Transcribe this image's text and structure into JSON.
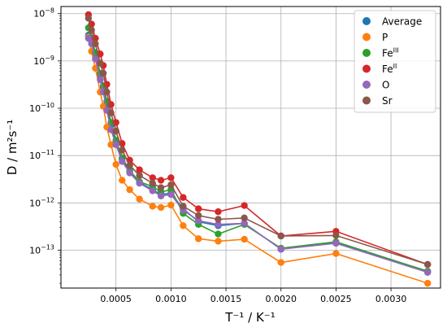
{
  "chart_data": {
    "type": "line",
    "xlabel": "T⁻¹ / K⁻¹",
    "ylabel": "D / m²s⁻¹",
    "xlim": [
      0.0,
      0.00345
    ],
    "ylim_log10": [
      -13.8,
      -7.85
    ],
    "yscale": "log",
    "grid": true,
    "legend_position": "top-right",
    "x_ticks": [
      {
        "value": 0.0005,
        "label": "0.0005"
      },
      {
        "value": 0.001,
        "label": "0.0010"
      },
      {
        "value": 0.0015,
        "label": "0.0015"
      },
      {
        "value": 0.002,
        "label": "0.0020"
      },
      {
        "value": 0.0025,
        "label": "0.0025"
      },
      {
        "value": 0.003,
        "label": "0.0030"
      }
    ],
    "y_ticks": [
      {
        "exp": -8,
        "base": "10",
        "sup": "−8"
      },
      {
        "exp": -9,
        "base": "10",
        "sup": "−9"
      },
      {
        "exp": -10,
        "base": "10",
        "sup": "−10"
      },
      {
        "exp": -11,
        "base": "10",
        "sup": "−11"
      },
      {
        "exp": -12,
        "base": "10",
        "sup": "−12"
      },
      {
        "exp": -13,
        "base": "10",
        "sup": "−13"
      }
    ],
    "x": [
      0.00025,
      0.000278,
      0.000313,
      0.000357,
      0.000385,
      0.000417,
      0.000455,
      0.0005,
      0.000556,
      0.000625,
      0.000714,
      0.000833,
      0.000909,
      0.001,
      0.001111,
      0.00125,
      0.001429,
      0.001667,
      0.002,
      0.0025,
      0.003333
    ],
    "series": [
      {
        "name": "Average",
        "sup": "",
        "color": "#1f77b4",
        "values": [
          3.5e-09,
          2.6e-09,
          1.3e-09,
          5e-10,
          2.7e-10,
          1.1e-10,
          4.4e-11,
          1.9e-11,
          8.5e-12,
          4.5e-12,
          2.7e-12,
          1.9e-12,
          1.5e-12,
          1.6e-12,
          7.5e-13,
          4e-13,
          3.3e-13,
          3.7e-13,
          1.05e-13,
          1.45e-13,
          3.5e-14
        ]
      },
      {
        "name": "P",
        "sup": "",
        "color": "#ff7f0e",
        "values": [
          3.2e-09,
          1.6e-09,
          7e-10,
          2.2e-10,
          1.1e-10,
          4e-11,
          1.7e-11,
          6.5e-12,
          3e-12,
          1.9e-12,
          1.2e-12,
          8.5e-13,
          8e-13,
          9e-13,
          3.3e-13,
          1.75e-13,
          1.55e-13,
          1.7e-13,
          5.5e-14,
          8.5e-14,
          2e-14
        ]
      },
      {
        "name": "Fe",
        "sup": "III",
        "color": "#2ca02c",
        "values": [
          5e-09,
          3e-09,
          1.5e-09,
          5.5e-10,
          3e-10,
          1.4e-10,
          5e-11,
          2.1e-11,
          9e-12,
          4.8e-12,
          2.8e-12,
          2.2e-12,
          1.7e-12,
          1.9e-12,
          6e-13,
          3.5e-13,
          2.2e-13,
          3.5e-13,
          1.1e-13,
          1.5e-13,
          3.6e-14
        ]
      },
      {
        "name": "Fe",
        "sup": "II",
        "color": "#d62728",
        "values": [
          9.5e-09,
          6e-09,
          3e-09,
          1.4e-09,
          8e-10,
          3.2e-10,
          1.2e-10,
          5e-11,
          1.8e-11,
          8e-12,
          5e-12,
          3.4e-12,
          3e-12,
          3.4e-12,
          1.3e-12,
          7.5e-13,
          6.5e-13,
          8.8e-13,
          2e-13,
          2.5e-13,
          5e-14
        ]
      },
      {
        "name": "O",
        "sup": "",
        "color": "#9467bd",
        "values": [
          3e-09,
          2.3e-09,
          1.1e-09,
          4e-10,
          2.2e-10,
          9e-11,
          3.5e-11,
          1.7e-11,
          7.5e-12,
          4.3e-12,
          2.6e-12,
          1.8e-12,
          1.4e-12,
          1.5e-12,
          7e-13,
          4.2e-13,
          3.5e-13,
          3.7e-13,
          1.05e-13,
          1.4e-13,
          3.4e-14
        ]
      },
      {
        "name": "Sr",
        "sup": "",
        "color": "#8c564b",
        "values": [
          8e-09,
          4.5e-09,
          2.3e-09,
          9e-10,
          5.5e-10,
          2.2e-10,
          8e-11,
          3.3e-11,
          1.3e-11,
          6.2e-12,
          3.8e-12,
          2.6e-12,
          2.1e-12,
          2.4e-12,
          8.5e-13,
          5.4e-13,
          4.5e-13,
          4.8e-13,
          2e-13,
          2.05e-13,
          5e-14
        ]
      }
    ]
  }
}
